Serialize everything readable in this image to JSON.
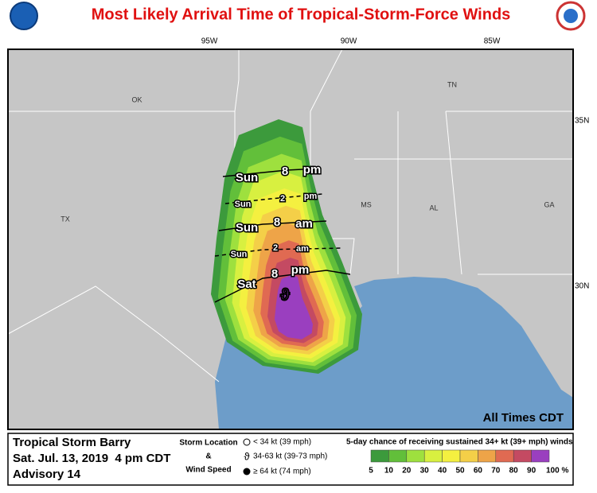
{
  "header": {
    "title": "Most Likely Arrival Time of Tropical-Storm-Force Winds"
  },
  "map": {
    "lon_labels": [
      "95W",
      "90W",
      "85W"
    ],
    "lat_labels": [
      "35N",
      "30N"
    ],
    "state_labels": [
      "OK",
      "TN",
      "TX",
      "MS",
      "AL",
      "GA"
    ],
    "arrival_labels": [
      [
        "Sun",
        "8",
        "pm"
      ],
      [
        "Sun",
        "2",
        "pm"
      ],
      [
        "Sun",
        "8",
        "am"
      ],
      [
        "Sun",
        "2",
        "am"
      ],
      [
        "Sat",
        "8",
        "pm"
      ]
    ],
    "note": "All Times CDT"
  },
  "footer": {
    "storm": {
      "name": "Tropical Storm Barry",
      "date": "Sat. Jul. 13, 2019  4 pm CDT",
      "advisory": "Advisory 14"
    },
    "key": {
      "title_lines": [
        "Storm Location",
        "&",
        "Wind Speed"
      ],
      "items": [
        "< 34 kt (39 mph)",
        "34-63 kt (39-73 mph)",
        "≥ 64 kt (74 mph)"
      ]
    },
    "probability": {
      "title": "5-day chance of receiving sustained 34+ kt (39+ mph) winds",
      "labels": [
        "5",
        "10",
        "20",
        "30",
        "40",
        "50",
        "60",
        "70",
        "80",
        "90",
        "100 %"
      ],
      "colors": [
        "#3c9a3c",
        "#62bf3a",
        "#9ee03e",
        "#d8f040",
        "#f4f040",
        "#f4cf48",
        "#eea448",
        "#e06a52",
        "#c44a62",
        "#9a3fbf"
      ]
    }
  }
}
